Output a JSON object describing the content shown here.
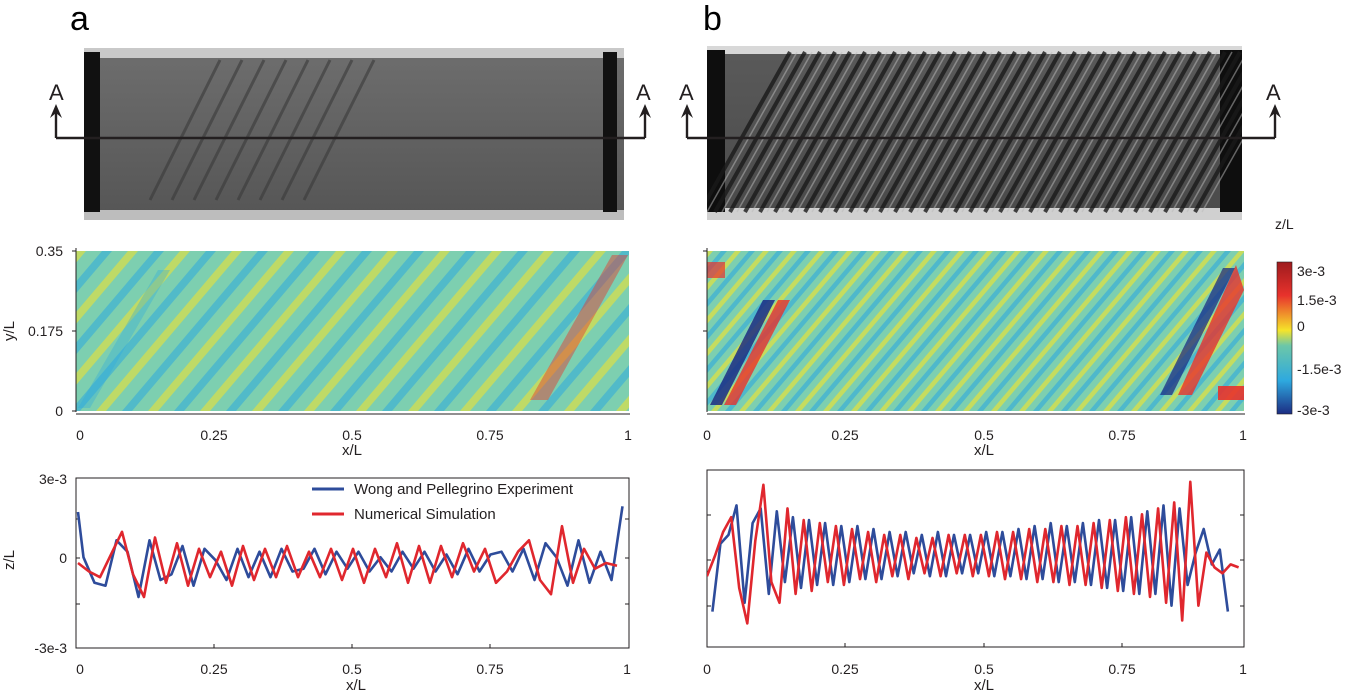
{
  "panels": [
    {
      "letter": "a",
      "section_label_left": "A",
      "section_label_right": "A"
    },
    {
      "letter": "b",
      "section_label_left": "A",
      "section_label_right": "A"
    }
  ],
  "colorbar": {
    "title": "z/L",
    "ticks": [
      "3e-3",
      "1.5e-3",
      "0",
      "-1.5e-3",
      "-3e-3"
    ],
    "colors": [
      "#9e1b1e",
      "#e8322c",
      "#f5e42a",
      "#6cc7a8",
      "#2ea9df",
      "#1c2d83"
    ]
  },
  "chart_data": [
    {
      "type": "heatmap",
      "panel": "a",
      "title": "",
      "xlabel": "x/L",
      "ylabel": "y/L",
      "xticks": [
        "0",
        "0.25",
        "0.5",
        "0.75",
        "1"
      ],
      "yticks": [
        "0",
        "0.175",
        "0.35"
      ],
      "xlim": [
        0,
        1
      ],
      "ylim": [
        0,
        0.35
      ],
      "zlim": [
        -0.003,
        0.003
      ]
    },
    {
      "type": "heatmap",
      "panel": "b",
      "title": "",
      "xlabel": "x/L",
      "ylabel": "",
      "xticks": [
        "0",
        "0.25",
        "0.5",
        "0.75",
        "1"
      ],
      "yticks": [],
      "xlim": [
        0,
        1
      ],
      "ylim": [
        0,
        0.35
      ],
      "zlim": [
        -0.003,
        0.003
      ]
    },
    {
      "type": "line",
      "panel": "a",
      "xlabel": "x/L",
      "ylabel": "z/L",
      "xticks": [
        "0",
        "0.25",
        "0.5",
        "0.75",
        "1"
      ],
      "yticks": [
        "3e-3",
        "0",
        "-3e-3"
      ],
      "xlim": [
        0,
        1
      ],
      "ylim": [
        -0.003,
        0.003
      ],
      "series": [
        {
          "name": "Wong and Pellegrino Experiment",
          "color": "#2e4c9b",
          "x": [
            0.0,
            0.01,
            0.03,
            0.05,
            0.07,
            0.09,
            0.11,
            0.13,
            0.15,
            0.17,
            0.19,
            0.21,
            0.23,
            0.25,
            0.27,
            0.29,
            0.31,
            0.33,
            0.35,
            0.37,
            0.39,
            0.41,
            0.43,
            0.45,
            0.47,
            0.49,
            0.51,
            0.53,
            0.55,
            0.57,
            0.59,
            0.61,
            0.63,
            0.65,
            0.67,
            0.69,
            0.71,
            0.73,
            0.75,
            0.77,
            0.79,
            0.81,
            0.83,
            0.85,
            0.87,
            0.89,
            0.91,
            0.93,
            0.95,
            0.97,
            0.99
          ],
          "y": [
            0.0018,
            0.0002,
            -0.0007,
            -0.0008,
            0.0008,
            0.0004,
            -0.0012,
            0.0008,
            -0.0006,
            -0.0004,
            0.0006,
            -0.0008,
            0.0005,
            0.0001,
            -0.0006,
            0.0005,
            -0.0005,
            0.0004,
            -0.0005,
            0.0005,
            -0.0003,
            -0.0002,
            0.0005,
            -0.0004,
            0.0004,
            -0.0002,
            0.0004,
            -0.0003,
            0.0002,
            -0.0003,
            0.0004,
            -0.0002,
            0.0004,
            -0.0003,
            0.0003,
            -0.0004,
            0.0005,
            -0.0003,
            0.0003,
            0.0004,
            -0.0003,
            0.0005,
            -0.0006,
            0.0007,
            0.0002,
            -0.0008,
            0.0008,
            -0.0007,
            0.0004,
            -0.0006,
            0.002
          ]
        },
        {
          "name": "Numerical Simulation",
          "color": "#e0272e",
          "x": [
            0.0,
            0.02,
            0.04,
            0.06,
            0.08,
            0.1,
            0.12,
            0.14,
            0.16,
            0.18,
            0.2,
            0.22,
            0.24,
            0.26,
            0.28,
            0.3,
            0.32,
            0.34,
            0.36,
            0.38,
            0.4,
            0.42,
            0.44,
            0.46,
            0.48,
            0.5,
            0.52,
            0.54,
            0.56,
            0.58,
            0.6,
            0.62,
            0.64,
            0.66,
            0.68,
            0.7,
            0.72,
            0.74,
            0.76,
            0.78,
            0.8,
            0.82,
            0.84,
            0.86,
            0.88,
            0.9,
            0.92,
            0.94,
            0.96,
            0.98
          ],
          "y": [
            0.0,
            -0.0003,
            -0.0005,
            0.0003,
            0.0011,
            -0.0004,
            -0.0012,
            0.0009,
            -0.0007,
            0.0007,
            -0.0008,
            0.0005,
            -0.0005,
            0.0004,
            -0.0008,
            0.0006,
            -0.0006,
            0.0005,
            -0.0005,
            0.0006,
            -0.0005,
            0.0004,
            -0.0005,
            0.0005,
            -0.0006,
            0.0005,
            -0.0007,
            0.0005,
            -0.0005,
            0.0007,
            -0.0007,
            0.0006,
            -0.0007,
            0.0006,
            -0.0005,
            0.0007,
            -0.0003,
            0.0005,
            -0.0007,
            -0.0003,
            0.0004,
            0.0008,
            -0.0006,
            -0.0011,
            0.0013,
            -0.0007,
            0.0005,
            -0.0002,
            0.0,
            -0.0001
          ]
        }
      ]
    },
    {
      "type": "line",
      "panel": "b",
      "xlabel": "x/L",
      "ylabel": "",
      "xticks": [
        "0",
        "0.25",
        "0.5",
        "0.75",
        "1"
      ],
      "yticks": [],
      "xlim": [
        0,
        1
      ],
      "ylim": [
        -0.003,
        0.003
      ],
      "series": [
        {
          "name": "Wong and Pellegrino Experiment",
          "color": "#2e4c9b",
          "x": [
            0.01,
            0.025,
            0.04,
            0.055,
            0.07,
            0.085,
            0.1,
            0.115,
            0.13,
            0.145,
            0.16,
            0.175,
            0.19,
            0.205,
            0.22,
            0.235,
            0.25,
            0.265,
            0.28,
            0.295,
            0.31,
            0.325,
            0.34,
            0.355,
            0.37,
            0.385,
            0.4,
            0.415,
            0.43,
            0.445,
            0.46,
            0.475,
            0.49,
            0.505,
            0.52,
            0.535,
            0.55,
            0.565,
            0.58,
            0.595,
            0.61,
            0.625,
            0.64,
            0.655,
            0.67,
            0.685,
            0.7,
            0.715,
            0.73,
            0.745,
            0.76,
            0.775,
            0.79,
            0.805,
            0.82,
            0.835,
            0.85,
            0.865,
            0.88,
            0.895,
            0.91,
            0.925,
            0.94,
            0.955,
            0.97
          ],
          "y": [
            -0.0018,
            0.0005,
            0.0008,
            0.0018,
            -0.0015,
            0.0012,
            0.0017,
            -0.0012,
            0.0016,
            -0.0008,
            0.0014,
            -0.001,
            0.0013,
            -0.0009,
            0.0012,
            -0.0009,
            0.0011,
            -0.0008,
            0.0011,
            -0.0007,
            0.001,
            -0.0007,
            0.0009,
            -0.0006,
            0.0009,
            -0.0005,
            0.0008,
            -0.0006,
            0.0009,
            -0.0006,
            0.0008,
            -0.0005,
            0.0008,
            -0.0005,
            0.0009,
            -0.0006,
            0.0009,
            -0.0006,
            0.001,
            -0.0007,
            0.0011,
            -0.0007,
            0.0012,
            -0.0008,
            0.0011,
            -0.0008,
            0.0012,
            -0.0009,
            0.0013,
            -0.001,
            0.0013,
            -0.0011,
            0.0014,
            -0.0012,
            0.0016,
            -0.0012,
            0.0018,
            -0.0016,
            0.0017,
            -0.0009,
            0.0002,
            0.001,
            -0.0002,
            0.0003,
            -0.0018
          ]
        },
        {
          "name": "Numerical Simulation",
          "color": "#e0272e",
          "x": [
            0.0,
            0.015,
            0.03,
            0.045,
            0.06,
            0.075,
            0.09,
            0.105,
            0.12,
            0.135,
            0.15,
            0.165,
            0.18,
            0.195,
            0.21,
            0.225,
            0.24,
            0.255,
            0.27,
            0.285,
            0.3,
            0.315,
            0.33,
            0.345,
            0.36,
            0.375,
            0.39,
            0.405,
            0.42,
            0.435,
            0.45,
            0.465,
            0.48,
            0.495,
            0.51,
            0.525,
            0.54,
            0.555,
            0.57,
            0.585,
            0.6,
            0.615,
            0.63,
            0.645,
            0.66,
            0.675,
            0.69,
            0.705,
            0.72,
            0.735,
            0.75,
            0.765,
            0.78,
            0.795,
            0.81,
            0.825,
            0.84,
            0.855,
            0.87,
            0.885,
            0.9,
            0.915,
            0.93,
            0.945,
            0.96,
            0.975,
            0.99
          ],
          "y": [
            -0.0006,
            0.0001,
            0.0009,
            0.0014,
            -0.001,
            -0.0022,
            0.0006,
            0.0025,
            -0.0008,
            -0.0015,
            0.0017,
            -0.0012,
            0.0013,
            -0.0011,
            0.0012,
            -0.0008,
            0.0011,
            -0.0009,
            0.001,
            -0.0007,
            0.0009,
            -0.0008,
            0.0008,
            -0.0006,
            0.0008,
            -0.0007,
            0.0007,
            -0.0005,
            0.0007,
            -0.0006,
            0.0008,
            -0.0005,
            0.0008,
            -0.0006,
            0.0008,
            -0.0006,
            0.0009,
            -0.0007,
            0.0009,
            -0.0007,
            0.001,
            -0.0008,
            0.001,
            -0.0008,
            0.0011,
            -0.0009,
            0.0011,
            -0.0009,
            0.0012,
            -0.001,
            0.0013,
            -0.0011,
            0.0014,
            -0.0012,
            0.0015,
            -0.0013,
            0.0017,
            -0.0015,
            0.0019,
            -0.0021,
            0.0026,
            -0.0016,
            0.0002,
            -0.0003,
            -0.0005,
            -0.0002,
            -0.0003
          ]
        }
      ]
    }
  ]
}
